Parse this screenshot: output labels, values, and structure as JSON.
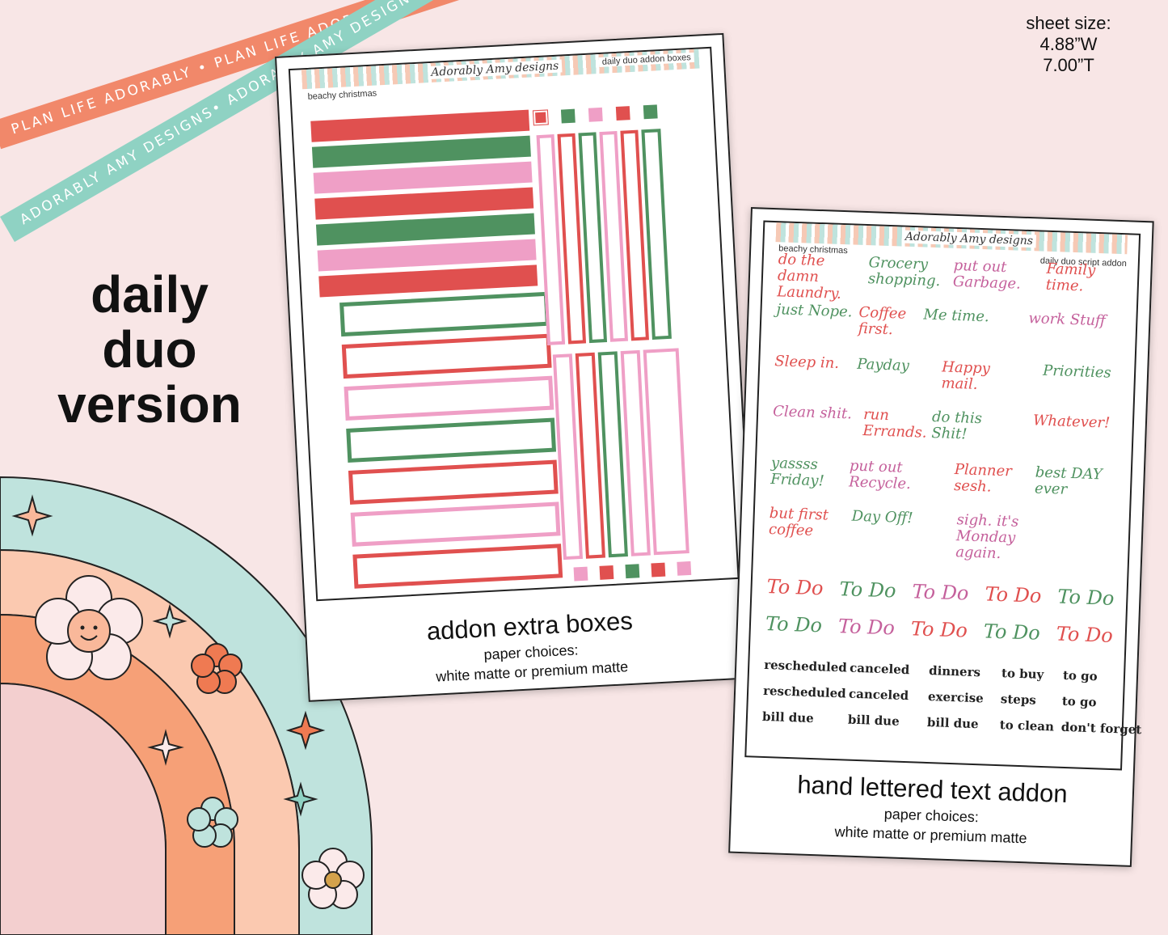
{
  "ribbons": {
    "top": "PLAN LIFE ADORABLY • PLAN LIFE ADORABLY • PLAN LIFE ADORABLY",
    "bottom": "ADORABLY AMY DESIGNS• ADORABLY AMY DESIGNS• ADORABLY AMY DESIGNS"
  },
  "side_label": [
    "daily",
    "duo",
    "version"
  ],
  "sheet_size": [
    "sheet size:",
    "4.88”W",
    "7.00”T"
  ],
  "sheet1": {
    "theme": "beachy christmas",
    "brand": "Adorably Amy designs",
    "name": "daily duo addon boxes",
    "caption": "addon extra boxes",
    "paper_label": "paper choices:",
    "paper_options": "white matte or premium matte"
  },
  "sheet2": {
    "theme": "beachy christmas",
    "brand": "Adorably Amy designs",
    "name": "daily duo script addon",
    "caption": "hand lettered text addon",
    "paper_label": "paper choices:",
    "paper_options": "white matte or premium matte",
    "scripts": [
      "do the damn Laundry.",
      "Grocery shopping.",
      "put out Garbage.",
      "Family time.",
      "just Nope.",
      "Coffee first.",
      "Me time.",
      "work Stuff",
      "Sleep in.",
      "Payday",
      "Happy mail.",
      "Priorities",
      "Clean shit.",
      "run Errands.",
      "do this Shit!",
      "Whatever!",
      "yassss Friday!",
      "put out Recycle.",
      "Planner sesh.",
      "best DAY ever",
      "but first coffee",
      "Day Off!",
      "sigh. it's Monday again."
    ],
    "todo": "To Do",
    "words": [
      "rescheduled",
      "canceled",
      "dinners",
      "to buy",
      "to go",
      "rescheduled",
      "canceled",
      "exercise",
      "steps",
      "to go",
      "bill due",
      "bill due",
      "bill due",
      "to clean",
      "don't forget"
    ]
  },
  "colors": {
    "red": "#e0504f",
    "green": "#4f9260",
    "pink": "#ef9fc6",
    "bg": "#f8e6e6"
  }
}
